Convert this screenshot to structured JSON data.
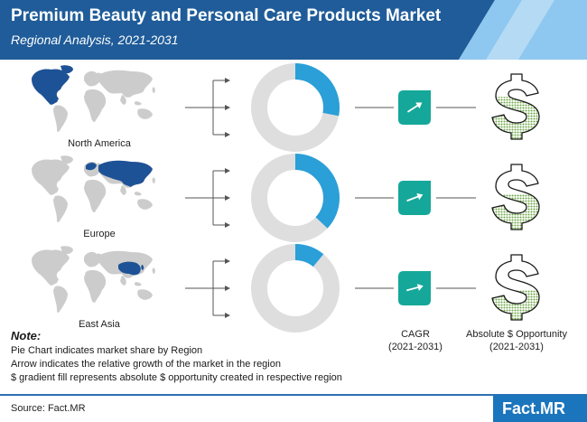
{
  "header": {
    "title": "Premium Beauty and Personal Care Products Market",
    "subtitle": "Regional Analysis, 2021-2031"
  },
  "colors": {
    "header_dark": "#1f5c99",
    "header_light": "#8ec7ef",
    "map_land": "#cccccc",
    "region_highlight": "#1e5296",
    "donut_track": "#dedede",
    "donut_share": "#2a9fd8",
    "cagr_badge": "#15a89a",
    "dollar_fill": "#6fa74a",
    "footer_line": "#2d6fb2",
    "logo_bg": "#1b75bc"
  },
  "icons": {
    "map": "world-map-icon",
    "cagr": "growth-arrow-icon",
    "opportunity": "dollar-sign-icon"
  },
  "columns": {
    "cagr": {
      "label": "CAGR",
      "period": "(2021-2031)"
    },
    "opportunity": {
      "label": "Absolute $ Opportunity",
      "period": "(2021-2031)"
    }
  },
  "chart_data": {
    "type": "pie",
    "title": "",
    "categories": [
      "North America",
      "Europe",
      "East Asia"
    ],
    "series": [
      {
        "name": "market share",
        "values": [
          0.28,
          0.37,
          0.11
        ]
      },
      {
        "name": "relative growth (arrow)",
        "values": [
          0.55,
          0.35,
          0.25
        ]
      },
      {
        "name": "absolute $ opportunity (gradient fill)",
        "values": [
          0.65,
          0.55,
          0.45
        ]
      }
    ]
  },
  "note": {
    "title": "Note:",
    "lines": [
      "Pie Chart indicates market share by Region",
      "Arrow indicates the relative growth of the market in the region",
      "$ gradient fill represents absolute $ opportunity created in respective region"
    ]
  },
  "source": "Source: Fact.MR",
  "logo": "Fact.MR"
}
